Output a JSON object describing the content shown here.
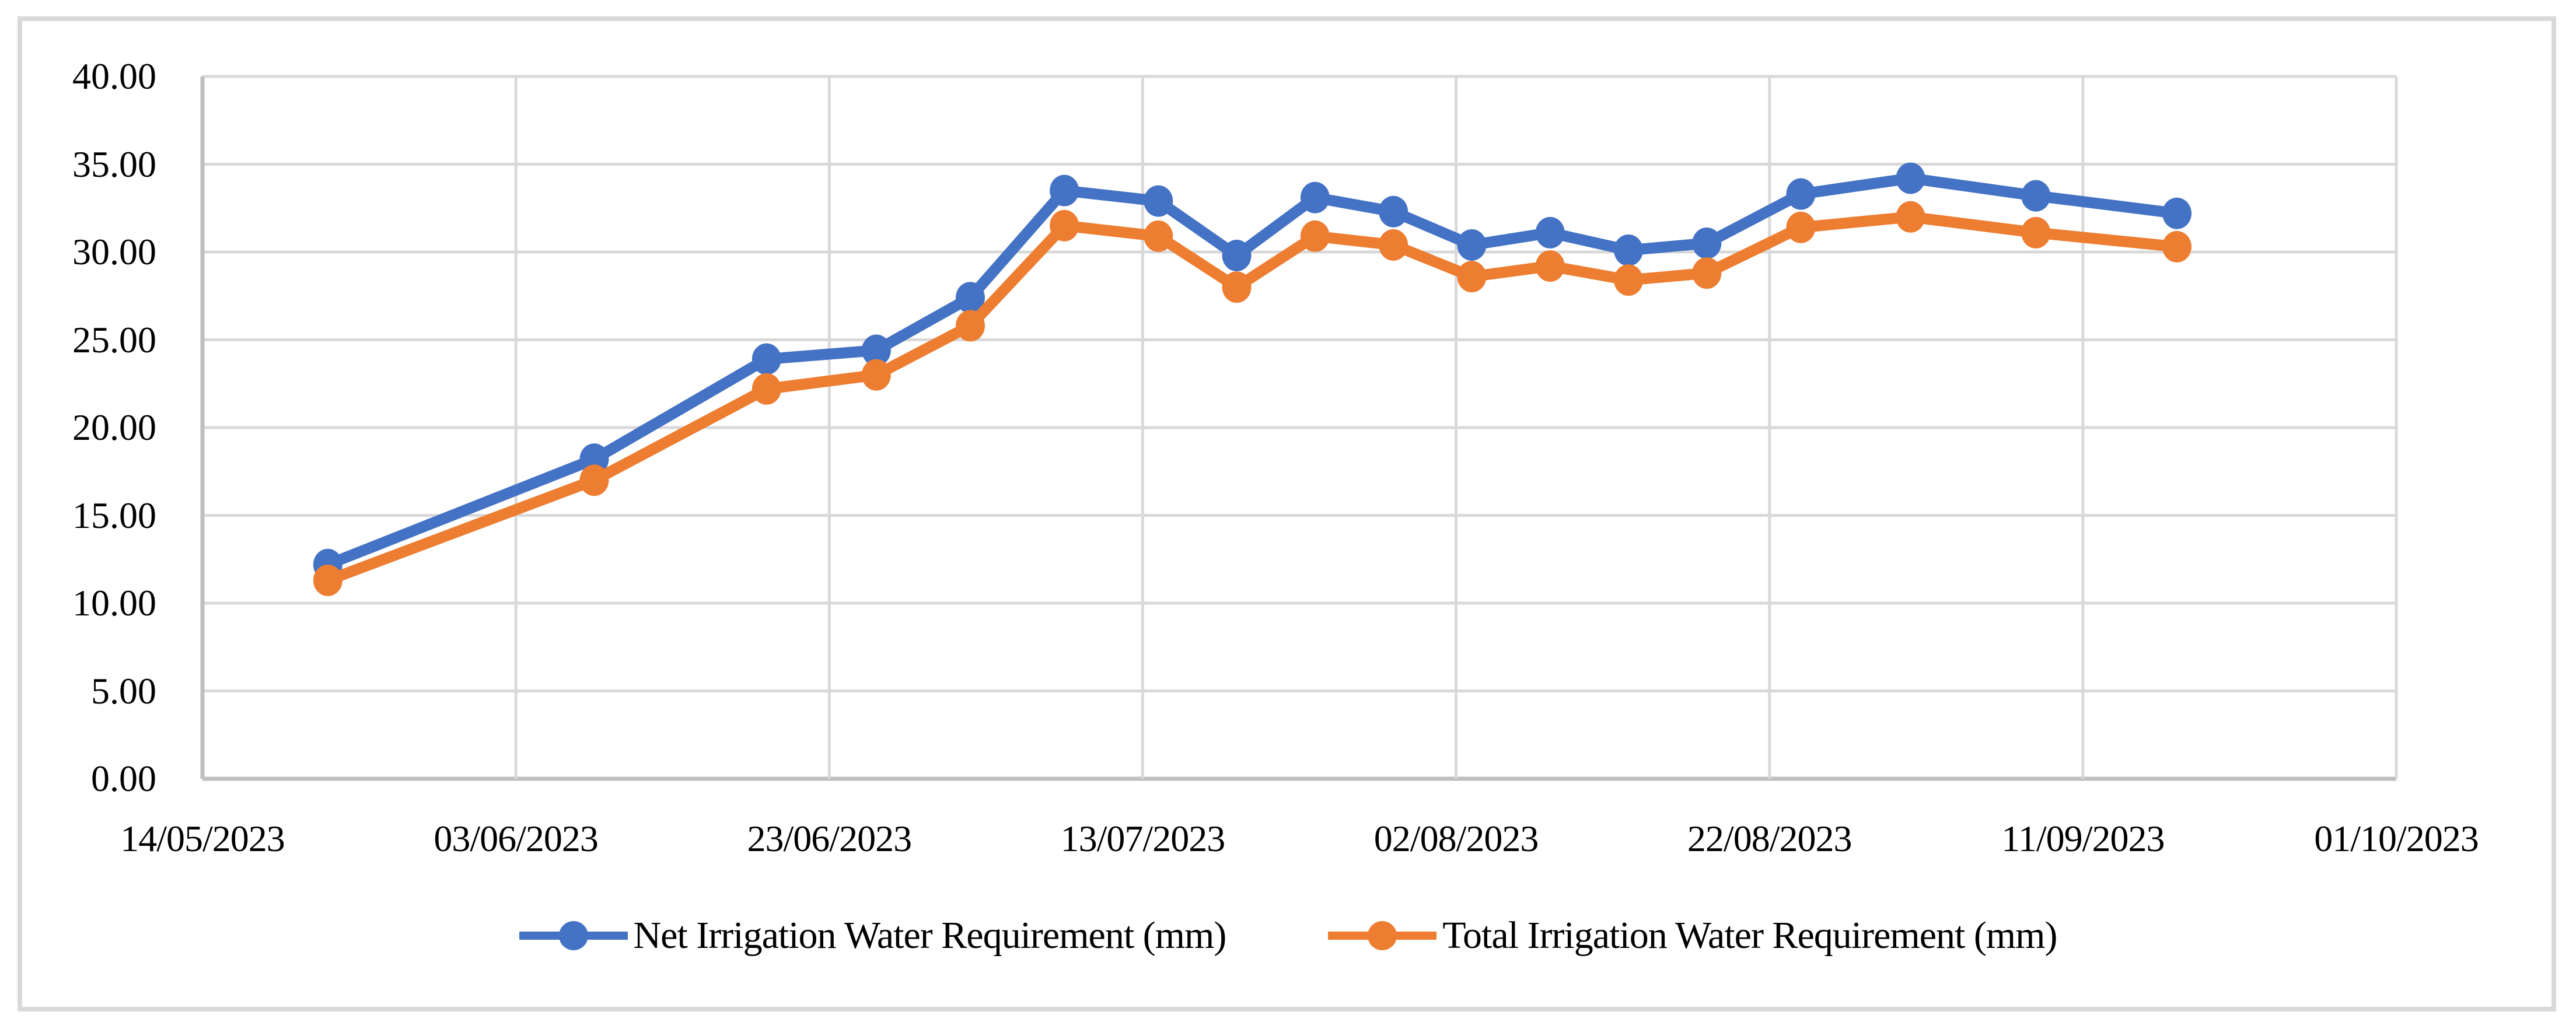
{
  "chart_data": {
    "type": "line",
    "x_dates": [
      "22/05/2023",
      "08/06/2023",
      "19/06/2023",
      "26/06/2023",
      "02/07/2023",
      "08/07/2023",
      "14/07/2023",
      "19/07/2023",
      "24/07/2023",
      "29/07/2023",
      "03/08/2023",
      "08/08/2023",
      "13/08/2023",
      "18/08/2023",
      "24/08/2023",
      "31/08/2023",
      "08/09/2023",
      "17/09/2023"
    ],
    "series": [
      {
        "name": "Net Irrigation Water Requirement (mm)",
        "color": "#4472C4",
        "values": [
          12.2,
          18.2,
          23.9,
          24.4,
          27.4,
          33.5,
          32.9,
          29.8,
          33.1,
          32.3,
          30.4,
          31.1,
          30.1,
          30.5,
          33.3,
          34.2,
          33.2,
          32.2
        ]
      },
      {
        "name": "Total Irrigation Water Requirement (mm)",
        "color": "#ED7D31",
        "values": [
          11.3,
          17.0,
          22.2,
          23.0,
          25.8,
          31.5,
          30.9,
          28.0,
          30.9,
          30.4,
          28.6,
          29.2,
          28.4,
          28.8,
          31.4,
          32.0,
          31.1,
          30.3
        ]
      }
    ],
    "x_axis": {
      "min": "14/05/2023",
      "max": "01/10/2023",
      "tick_interval_days": 20,
      "tick_labels": [
        "14/05/2023",
        "03/06/2023",
        "23/06/2023",
        "13/07/2023",
        "02/08/2023",
        "22/08/2023",
        "11/09/2023",
        "01/10/2023"
      ]
    },
    "y_axis": {
      "min": 0,
      "max": 40,
      "step": 5,
      "tick_labels": [
        "0.00",
        "5.00",
        "10.00",
        "15.00",
        "20.00",
        "25.00",
        "30.00",
        "35.00",
        "40.00"
      ]
    },
    "grid": true,
    "legend_position": "bottom",
    "marker": "circle",
    "colors": {
      "gridline": "#D9D9D9",
      "axis_line": "#BFBFBF",
      "text": "#000000",
      "chart_border": "#D9D9D9",
      "background": "#FFFFFF"
    }
  }
}
